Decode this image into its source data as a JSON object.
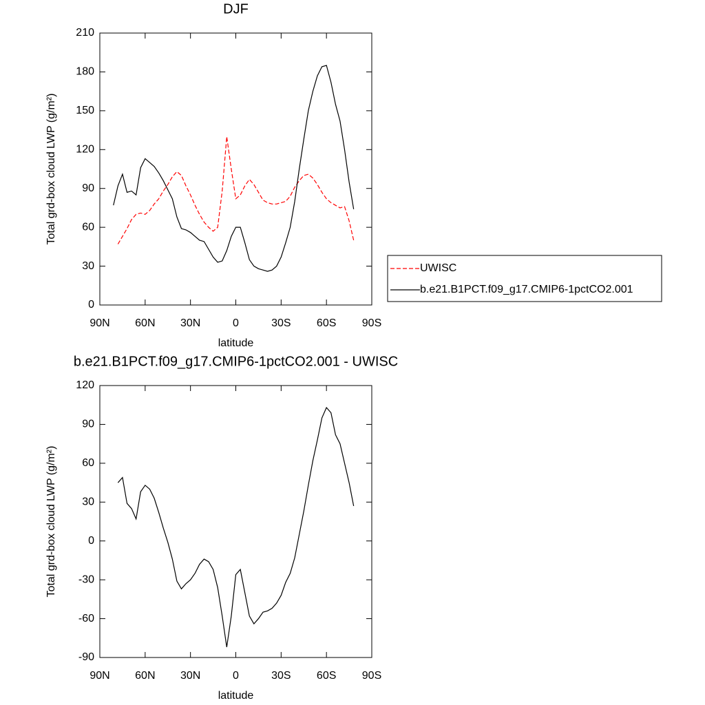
{
  "chart_data": [
    {
      "type": "line",
      "title": "DJF",
      "xlabel": "latitude",
      "ylabel": "Total grd-box cloud LWP (g/m²)",
      "xlim": [
        90,
        -90
      ],
      "xticks": [
        {
          "value": 90,
          "label": "90N"
        },
        {
          "value": 60,
          "label": "60N"
        },
        {
          "value": 30,
          "label": "30N"
        },
        0,
        {
          "value": -30,
          "label": "30S"
        },
        {
          "value": -60,
          "label": "60S"
        },
        {
          "value": -90,
          "label": "90S"
        }
      ],
      "ylim": [
        0,
        210
      ],
      "yticks": [
        0,
        30,
        60,
        90,
        120,
        150,
        180,
        210
      ],
      "legend": "outside right",
      "x": [
        81,
        78,
        75,
        72,
        69,
        66,
        63,
        60,
        57,
        54,
        51,
        48,
        45,
        42,
        39,
        36,
        33,
        30,
        27,
        24,
        21,
        18,
        15,
        12,
        9,
        6,
        3,
        0,
        -3,
        -6,
        -9,
        -12,
        -15,
        -18,
        -21,
        -24,
        -27,
        -30,
        -33,
        -36,
        -39,
        -42,
        -45,
        -48,
        -51,
        -54,
        -57,
        -60,
        -63,
        -66,
        -69,
        -72,
        -75,
        -78
      ],
      "series": [
        {
          "name": "UWISC",
          "color": "#ff0000",
          "dashed": true,
          "values": [
            null,
            47,
            53,
            59,
            66,
            70,
            71,
            70,
            73,
            78,
            82,
            88,
            93,
            99,
            103,
            100,
            92,
            85,
            77,
            70,
            64,
            60,
            57,
            60,
            88,
            130,
            105,
            82,
            85,
            92,
            97,
            93,
            87,
            81,
            79,
            78,
            78,
            79,
            80,
            84,
            91,
            96,
            100,
            101,
            98,
            93,
            87,
            82,
            79,
            77,
            75,
            76,
            65,
            50
          ]
        },
        {
          "name": "b.e21.B1PCT.f09_g17.CMIP6-1pctCO2.001",
          "color": "#000000",
          "dashed": false,
          "values": [
            77,
            92,
            101,
            87,
            88,
            85,
            106,
            113,
            110,
            107,
            102,
            96,
            89,
            82,
            68,
            59,
            58,
            56,
            53,
            50,
            49,
            43,
            37,
            33,
            34,
            42,
            53,
            60,
            60,
            48,
            35,
            30,
            28,
            27,
            26,
            27,
            30,
            37,
            48,
            60,
            80,
            105,
            128,
            150,
            165,
            177,
            184,
            185,
            172,
            155,
            142,
            120,
            95,
            74
          ]
        }
      ]
    },
    {
      "type": "line",
      "title": "b.e21.B1PCT.f09_g17.CMIP6-1pctCO2.001 - UWISC",
      "xlabel": "latitude",
      "ylabel": "Total grd-box cloud LWP (g/m²)",
      "xlim": [
        90,
        -90
      ],
      "xticks": [
        {
          "value": 90,
          "label": "90N"
        },
        {
          "value": 60,
          "label": "60N"
        },
        {
          "value": 30,
          "label": "30N"
        },
        0,
        {
          "value": -30,
          "label": "30S"
        },
        {
          "value": -60,
          "label": "60S"
        },
        {
          "value": -90,
          "label": "90S"
        }
      ],
      "ylim": [
        -90,
        120
      ],
      "yticks": [
        -90,
        -60,
        -30,
        0,
        30,
        60,
        90,
        120
      ],
      "x": [
        81,
        78,
        75,
        72,
        69,
        66,
        63,
        60,
        57,
        54,
        51,
        48,
        45,
        42,
        39,
        36,
        33,
        30,
        27,
        24,
        21,
        18,
        15,
        12,
        9,
        6,
        3,
        0,
        -3,
        -6,
        -9,
        -12,
        -15,
        -18,
        -21,
        -24,
        -27,
        -30,
        -33,
        -36,
        -39,
        -42,
        -45,
        -48,
        -51,
        -54,
        -57,
        -60,
        -63,
        -66,
        -69,
        -72,
        -75,
        -78
      ],
      "series": [
        {
          "color": "#000000",
          "dashed": false,
          "values": [
            null,
            45,
            49,
            29,
            25,
            17,
            38,
            43,
            40,
            33,
            22,
            10,
            -1,
            -14,
            -31,
            -37,
            -33,
            -30,
            -25,
            -18,
            -14,
            -16,
            -22,
            -36,
            -58,
            -82,
            -58,
            -26,
            -22,
            -40,
            -58,
            -64,
            -60,
            -55,
            -54,
            -52,
            -48,
            -42,
            -32,
            -25,
            -13,
            5,
            23,
            43,
            62,
            78,
            95,
            103,
            99,
            82,
            75,
            60,
            45,
            27
          ]
        }
      ]
    }
  ]
}
